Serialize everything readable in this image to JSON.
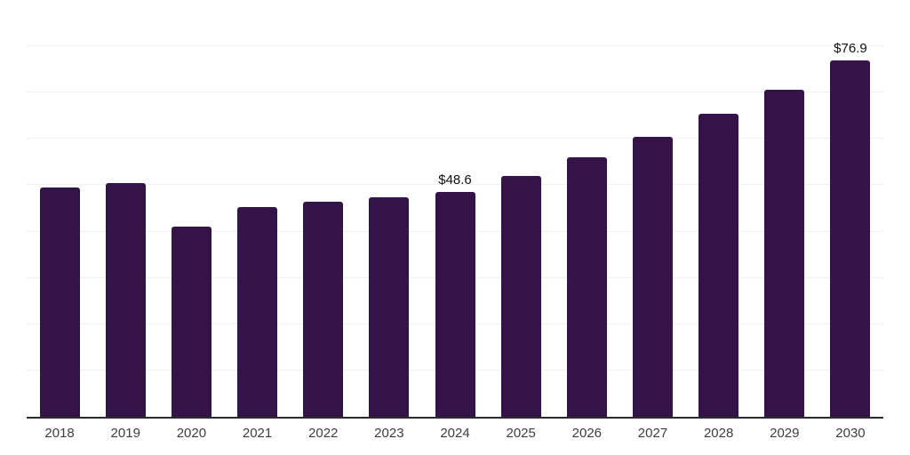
{
  "chart_data": {
    "type": "bar",
    "title": "",
    "xlabel": "",
    "ylabel": "",
    "categories": [
      "2018",
      "2019",
      "2020",
      "2021",
      "2022",
      "2023",
      "2024",
      "2025",
      "2026",
      "2027",
      "2028",
      "2029",
      "2030"
    ],
    "values": [
      49.6,
      50.5,
      41.1,
      45.2,
      46.4,
      47.4,
      48.6,
      52.1,
      56.0,
      60.4,
      65.4,
      70.7,
      76.9
    ],
    "data_labels": [
      "",
      "",
      "",
      "",
      "",
      "",
      "$48.6",
      "",
      "",
      "",
      "",
      "",
      "$76.9"
    ],
    "ylim": [
      0,
      90
    ],
    "gridline_step": 10,
    "grid": true,
    "y_tick_labels_visible": false,
    "legend_position": "none"
  },
  "colors": {
    "background": "#ffffff",
    "bar": "#341349",
    "gridline": "#f0f0f0",
    "axis_line": "#2b2b2b",
    "tick_label": "#3d3d3d",
    "data_label": "#0f0f0f"
  }
}
